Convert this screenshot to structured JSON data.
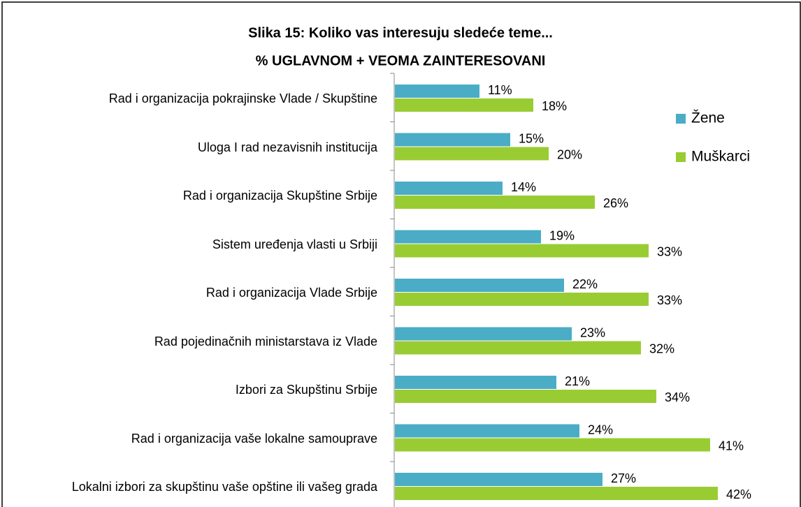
{
  "chart_data": {
    "type": "bar",
    "orientation": "horizontal",
    "title": "Slika 15: Koliko vas interesuju sledeće teme...",
    "subtitle": "% UGLAVNOM + VEOMA ZAINTERESOVANI",
    "categories": [
      "Rad i organizacija pokrajinske Vlade / Skupštine",
      "Uloga I rad nezavisnih institucija",
      "Rad i organizacija Skupštine Srbije",
      "Sistem uređenja vlasti u Srbiji",
      "Rad i organizacija Vlade Srbije",
      "Rad pojedinačnih ministarstava iz Vlade",
      "Izbori za Skupštinu Srbije",
      "Rad i organizacija vaše lokalne samouprave",
      "Lokalni izbori za skupštinu vaše opštine ili vašeg grada"
    ],
    "series": [
      {
        "name": "Žene",
        "color": "#4bacc6",
        "values": [
          11,
          15,
          14,
          19,
          22,
          23,
          21,
          24,
          27
        ],
        "value_labels": [
          "11%",
          "15%",
          "14%",
          "19%",
          "22%",
          "23%",
          "21%",
          "24%",
          "27%"
        ]
      },
      {
        "name": "Muškarci",
        "color": "#99cc33",
        "values": [
          18,
          20,
          26,
          33,
          33,
          32,
          34,
          41,
          42
        ],
        "value_labels": [
          "18%",
          "20%",
          "26%",
          "33%",
          "33%",
          "32%",
          "34%",
          "41%",
          "42%"
        ]
      }
    ],
    "xlim": [
      0,
      50
    ],
    "legend": "right"
  }
}
